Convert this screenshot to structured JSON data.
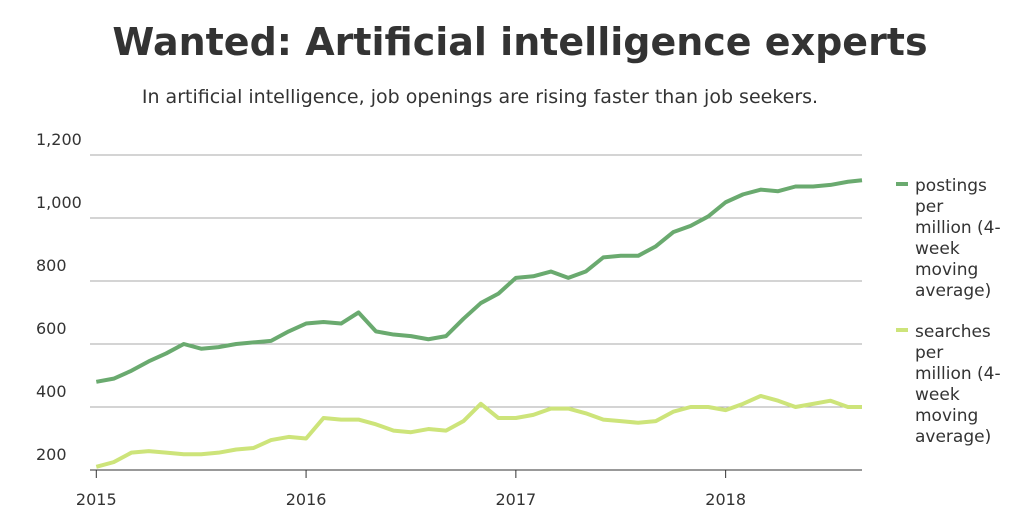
{
  "chart_data": {
    "type": "line",
    "title": "Wanted: Artificial intelligence experts",
    "subtitle": "In artificial intelligence, job openings are rising faster than job seekers.",
    "x": [
      2015.0,
      2015.083,
      2015.167,
      2015.25,
      2015.333,
      2015.417,
      2015.5,
      2015.583,
      2015.667,
      2015.75,
      2015.833,
      2015.917,
      2016.0,
      2016.083,
      2016.167,
      2016.25,
      2016.333,
      2016.417,
      2016.5,
      2016.583,
      2016.667,
      2016.75,
      2016.833,
      2016.917,
      2017.0,
      2017.083,
      2017.167,
      2017.25,
      2017.333,
      2017.417,
      2017.5,
      2017.583,
      2017.667,
      2017.75,
      2017.833,
      2017.917,
      2018.0,
      2018.083,
      2018.167,
      2018.25,
      2018.333,
      2018.417,
      2018.5,
      2018.583,
      2018.65
    ],
    "series": [
      {
        "name": "postings per million (4-week moving average)",
        "color": "#6aaa6f",
        "values": [
          480,
          490,
          515,
          545,
          570,
          600,
          585,
          590,
          600,
          605,
          610,
          640,
          665,
          670,
          665,
          700,
          640,
          630,
          625,
          615,
          625,
          680,
          730,
          760,
          810,
          815,
          830,
          810,
          830,
          875,
          880,
          880,
          910,
          955,
          975,
          1005,
          1050,
          1075,
          1090,
          1085,
          1100,
          1100,
          1105,
          1115,
          1120
        ]
      },
      {
        "name": "searches per million (4-week moving average)",
        "color": "#cde47a",
        "values": [
          210,
          225,
          255,
          260,
          255,
          250,
          250,
          255,
          265,
          270,
          295,
          305,
          300,
          365,
          360,
          360,
          345,
          325,
          320,
          330,
          325,
          355,
          410,
          365,
          365,
          375,
          395,
          395,
          380,
          360,
          355,
          350,
          355,
          385,
          400,
          400,
          390,
          410,
          435,
          420,
          400,
          410,
          420,
          400,
          400
        ]
      }
    ],
    "xlim": [
      2014.97,
      2018.65
    ],
    "ylim": [
      200,
      1200
    ],
    "xticks": [
      2015,
      2016,
      2017,
      2018
    ],
    "yticks": [
      200,
      400,
      600,
      800,
      {
        "value": 1000,
        "label": "1,000"
      },
      {
        "value": 1200,
        "label": "1,200"
      }
    ],
    "grid": true
  }
}
